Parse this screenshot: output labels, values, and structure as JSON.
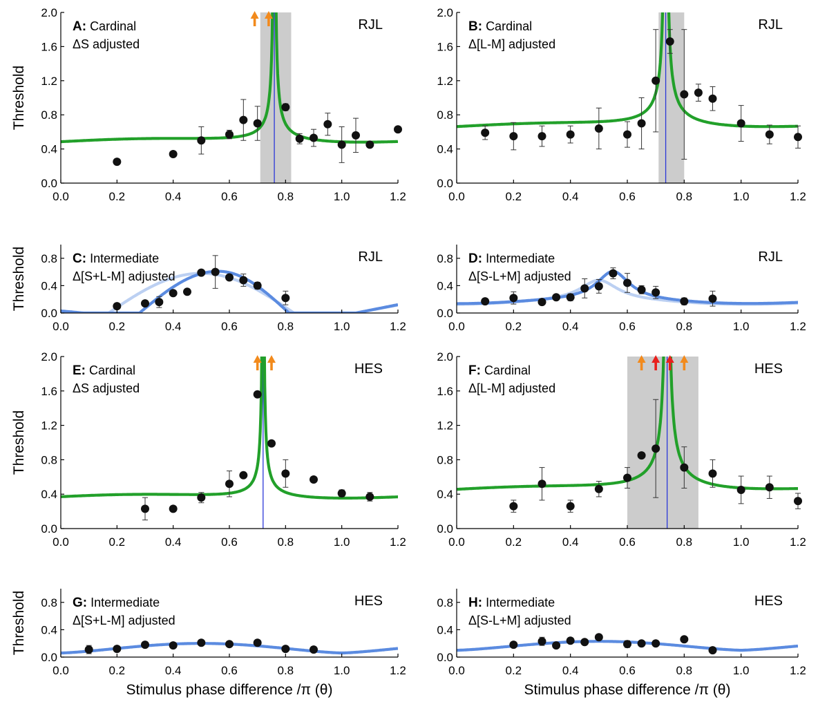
{
  "chart_data": [
    {
      "panel": "A",
      "type": "scatter",
      "title_letter": "A:",
      "title_label": "Cardinal",
      "subtitle": "ΔS adjusted",
      "subject": "RJL",
      "ylabel": "Threshold",
      "xlabel": "",
      "ylim": [
        0,
        2.0
      ],
      "xlim": [
        0,
        1.2
      ],
      "yticks": [
        "0.0",
        "0.4",
        "0.8",
        "1.2",
        "1.6",
        "2.0"
      ],
      "xticks": [
        "0.0",
        "0.2",
        "0.4",
        "0.6",
        "0.8",
        "1.0",
        "1.2"
      ],
      "shade": [
        0.71,
        0.82
      ],
      "vline": 0.76,
      "arrows": [
        {
          "x": 0.69,
          "color": "#f28a1c"
        },
        {
          "x": 0.74,
          "color": "#f28a1c"
        }
      ],
      "curve": {
        "kind": "cardinal",
        "peak": 0.76,
        "base": 0.47,
        "amp": 0.01,
        "ph": 0.3,
        "color": "#22a02a"
      },
      "points": [
        {
          "x": 0.2,
          "y": 0.25,
          "err": 0.02
        },
        {
          "x": 0.4,
          "y": 0.34,
          "err": 0.03
        },
        {
          "x": 0.5,
          "y": 0.5,
          "err": 0.16
        },
        {
          "x": 0.6,
          "y": 0.57,
          "err": 0.05
        },
        {
          "x": 0.65,
          "y": 0.74,
          "err": 0.24
        },
        {
          "x": 0.7,
          "y": 0.7,
          "err": 0.2
        },
        {
          "x": 0.8,
          "y": 0.89,
          "err": 0.04
        },
        {
          "x": 0.85,
          "y": 0.52,
          "err": 0.06
        },
        {
          "x": 0.9,
          "y": 0.53,
          "err": 0.1
        },
        {
          "x": 0.95,
          "y": 0.69,
          "err": 0.13
        },
        {
          "x": 1.0,
          "y": 0.45,
          "err": 0.21
        },
        {
          "x": 1.05,
          "y": 0.56,
          "err": 0.2
        },
        {
          "x": 1.1,
          "y": 0.45,
          "err": 0.02
        },
        {
          "x": 1.2,
          "y": 0.63,
          "err": 0.02
        }
      ]
    },
    {
      "panel": "B",
      "type": "scatter",
      "title_letter": "B:",
      "title_label": "Cardinal",
      "subtitle": "Δ[L-M] adjusted",
      "subject": "RJL",
      "ylabel": "",
      "xlabel": "",
      "ylim": [
        0,
        2.0
      ],
      "xlim": [
        0,
        1.2
      ],
      "yticks": [
        "0.0",
        "0.4",
        "0.8",
        "1.2",
        "1.6",
        "2.0"
      ],
      "xticks": [
        "0.0",
        "0.2",
        "0.4",
        "0.6",
        "0.8",
        "1.0",
        "1.2"
      ],
      "shade": [
        0.71,
        0.8
      ],
      "vline": 0.735,
      "arrows": [],
      "curve": {
        "kind": "cardinal",
        "peak": 0.735,
        "base": 0.64,
        "amp": 0.015,
        "ph": 0.3,
        "color": "#22a02a"
      },
      "points": [
        {
          "x": 0.1,
          "y": 0.59,
          "err": 0.08
        },
        {
          "x": 0.2,
          "y": 0.55,
          "err": 0.16
        },
        {
          "x": 0.3,
          "y": 0.55,
          "err": 0.12
        },
        {
          "x": 0.4,
          "y": 0.57,
          "err": 0.1
        },
        {
          "x": 0.5,
          "y": 0.64,
          "err": 0.24
        },
        {
          "x": 0.6,
          "y": 0.57,
          "err": 0.15
        },
        {
          "x": 0.65,
          "y": 0.7,
          "err": 0.3
        },
        {
          "x": 0.7,
          "y": 1.2,
          "err": 0.6
        },
        {
          "x": 0.75,
          "y": 1.66,
          "err": 0.14
        },
        {
          "x": 0.8,
          "y": 1.04,
          "err": 0.76
        },
        {
          "x": 0.85,
          "y": 1.06,
          "err": 0.1
        },
        {
          "x": 0.9,
          "y": 0.99,
          "err": 0.14
        },
        {
          "x": 1.0,
          "y": 0.7,
          "err": 0.21
        },
        {
          "x": 1.1,
          "y": 0.57,
          "err": 0.11
        },
        {
          "x": 1.2,
          "y": 0.54,
          "err": 0.13
        }
      ]
    },
    {
      "panel": "C",
      "type": "scatter",
      "title_letter": "C:",
      "title_label": "Intermediate",
      "subtitle": "Δ[S+L-M] adjusted",
      "subject": "RJL",
      "ylabel": "Threshold",
      "xlabel": "",
      "ylim": [
        0,
        1.0
      ],
      "xlim": [
        0,
        1.2
      ],
      "yticks": [
        "0.0",
        "0.4",
        "0.8"
      ],
      "xticks": [
        "0.0",
        "0.2",
        "0.4",
        "0.6",
        "0.8",
        "1.0",
        "1.2"
      ],
      "curves": [
        {
          "kind": "intermediate",
          "mid": 0.5,
          "width": 0.33,
          "max": 0.58,
          "min": 0.0,
          "color": "#bcd0f2"
        },
        {
          "kind": "intermediate",
          "mid": 0.56,
          "width": 0.28,
          "max": 0.61,
          "min": 0.0,
          "skew": 0.9,
          "color": "#5b8be0"
        }
      ],
      "points": [
        {
          "x": 0.2,
          "y": 0.1,
          "err": 0.03
        },
        {
          "x": 0.3,
          "y": 0.14,
          "err": 0.03
        },
        {
          "x": 0.35,
          "y": 0.16,
          "err": 0.08
        },
        {
          "x": 0.4,
          "y": 0.29,
          "err": 0.03
        },
        {
          "x": 0.45,
          "y": 0.31,
          "err": 0.03
        },
        {
          "x": 0.5,
          "y": 0.59,
          "err": 0.03
        },
        {
          "x": 0.55,
          "y": 0.6,
          "err": 0.24
        },
        {
          "x": 0.6,
          "y": 0.52,
          "err": 0.03
        },
        {
          "x": 0.65,
          "y": 0.48,
          "err": 0.09
        },
        {
          "x": 0.7,
          "y": 0.4,
          "err": 0.05
        },
        {
          "x": 0.8,
          "y": 0.22,
          "err": 0.1
        }
      ]
    },
    {
      "panel": "D",
      "type": "scatter",
      "title_letter": "D:",
      "title_label": "Intermediate",
      "subtitle": "Δ[S-L+M] adjusted",
      "subject": "RJL",
      "ylabel": "",
      "xlabel": "",
      "ylim": [
        0,
        1.0
      ],
      "xlim": [
        0,
        1.2
      ],
      "yticks": [
        "0.0",
        "0.4",
        "0.8"
      ],
      "xticks": [
        "0.0",
        "0.2",
        "0.4",
        "0.6",
        "0.8",
        "1.0",
        "1.2"
      ],
      "curves": [
        {
          "kind": "bump",
          "peak": 0.5,
          "width": 0.08,
          "base": 0.15,
          "top": 0.45,
          "color": "#bcd0f2"
        },
        {
          "kind": "bump",
          "peak": 0.55,
          "width": 0.07,
          "base": 0.16,
          "top": 0.58,
          "color": "#5b8be0"
        }
      ],
      "points": [
        {
          "x": 0.1,
          "y": 0.17,
          "err": 0.03
        },
        {
          "x": 0.2,
          "y": 0.22,
          "err": 0.09
        },
        {
          "x": 0.3,
          "y": 0.16,
          "err": 0.03
        },
        {
          "x": 0.35,
          "y": 0.23,
          "err": 0.03
        },
        {
          "x": 0.4,
          "y": 0.23,
          "err": 0.05
        },
        {
          "x": 0.45,
          "y": 0.36,
          "err": 0.14
        },
        {
          "x": 0.5,
          "y": 0.39,
          "err": 0.1
        },
        {
          "x": 0.55,
          "y": 0.58,
          "err": 0.08
        },
        {
          "x": 0.6,
          "y": 0.44,
          "err": 0.14
        },
        {
          "x": 0.65,
          "y": 0.34,
          "err": 0.06
        },
        {
          "x": 0.7,
          "y": 0.3,
          "err": 0.09
        },
        {
          "x": 0.8,
          "y": 0.17,
          "err": 0.05
        },
        {
          "x": 0.9,
          "y": 0.21,
          "err": 0.11
        }
      ]
    },
    {
      "panel": "E",
      "type": "scatter",
      "title_letter": "E:",
      "title_label": "Cardinal",
      "subtitle": "ΔS adjusted",
      "subject": "HES",
      "ylabel": "Threshold",
      "xlabel": "",
      "ylim": [
        0,
        2.0
      ],
      "xlim": [
        0,
        1.2
      ],
      "yticks": [
        "0.0",
        "0.4",
        "0.8",
        "1.2",
        "1.6",
        "2.0"
      ],
      "xticks": [
        "0.0",
        "0.2",
        "0.4",
        "0.6",
        "0.8",
        "1.0",
        "1.2"
      ],
      "shade": null,
      "vline": 0.72,
      "arrows": [
        {
          "x": 0.7,
          "color": "#f28a1c"
        },
        {
          "x": 0.75,
          "color": "#f28a1c"
        }
      ],
      "curve": {
        "kind": "cardinal",
        "peak": 0.72,
        "base": 0.35,
        "amp": 0.008,
        "ph": 0.25,
        "color": "#22a02a"
      },
      "points": [
        {
          "x": 0.3,
          "y": 0.23,
          "err": 0.13
        },
        {
          "x": 0.4,
          "y": 0.23,
          "err": 0.03
        },
        {
          "x": 0.5,
          "y": 0.36,
          "err": 0.06
        },
        {
          "x": 0.6,
          "y": 0.52,
          "err": 0.15
        },
        {
          "x": 0.65,
          "y": 0.62,
          "err": 0.03
        },
        {
          "x": 0.7,
          "y": 1.56,
          "err": 0.03
        },
        {
          "x": 0.75,
          "y": 0.99,
          "err": 0.03
        },
        {
          "x": 0.8,
          "y": 0.64,
          "err": 0.16
        },
        {
          "x": 0.9,
          "y": 0.57,
          "err": 0.03
        },
        {
          "x": 1.0,
          "y": 0.41,
          "err": 0.04
        },
        {
          "x": 1.1,
          "y": 0.37,
          "err": 0.05
        }
      ]
    },
    {
      "panel": "F",
      "type": "scatter",
      "title_letter": "F:",
      "title_label": "Cardinal",
      "subtitle": "Δ[L-M] adjusted",
      "subject": "HES",
      "ylabel": "",
      "xlabel": "",
      "ylim": [
        0,
        2.0
      ],
      "xlim": [
        0,
        1.2
      ],
      "yticks": [
        "0.0",
        "0.4",
        "0.8",
        "1.2",
        "1.6",
        "2.0"
      ],
      "xticks": [
        "0.0",
        "0.2",
        "0.4",
        "0.6",
        "0.8",
        "1.0",
        "1.2"
      ],
      "shade": [
        0.6,
        0.85
      ],
      "vline": 0.74,
      "arrows": [
        {
          "x": 0.65,
          "color": "#f28a1c"
        },
        {
          "x": 0.7,
          "color": "#e8201c"
        },
        {
          "x": 0.75,
          "color": "#e8201c"
        },
        {
          "x": 0.8,
          "color": "#f28a1c"
        }
      ],
      "curve": {
        "kind": "cardinal",
        "peak": 0.74,
        "base": 0.42,
        "amp": 0.02,
        "ph": 0.25,
        "color": "#22a02a"
      },
      "points": [
        {
          "x": 0.2,
          "y": 0.26,
          "err": 0.07
        },
        {
          "x": 0.3,
          "y": 0.52,
          "err": 0.19
        },
        {
          "x": 0.4,
          "y": 0.26,
          "err": 0.07
        },
        {
          "x": 0.5,
          "y": 0.46,
          "err": 0.09
        },
        {
          "x": 0.6,
          "y": 0.59,
          "err": 0.12
        },
        {
          "x": 0.65,
          "y": 0.85,
          "err": 0.03
        },
        {
          "x": 0.7,
          "y": 0.93,
          "err": 0.57
        },
        {
          "x": 0.8,
          "y": 0.71,
          "err": 0.24
        },
        {
          "x": 0.9,
          "y": 0.64,
          "err": 0.16
        },
        {
          "x": 1.0,
          "y": 0.45,
          "err": 0.16
        },
        {
          "x": 1.1,
          "y": 0.48,
          "err": 0.13
        },
        {
          "x": 1.2,
          "y": 0.32,
          "err": 0.09
        }
      ]
    },
    {
      "panel": "G",
      "type": "scatter",
      "title_letter": "G:",
      "title_label": "Intermediate",
      "subtitle": "Δ[S+L-M] adjusted",
      "subject": "HES",
      "ylabel": "Threshold",
      "xlabel": "Stimulus phase difference /π (θ)",
      "ylim": [
        0,
        1.0
      ],
      "xlim": [
        0,
        1.2
      ],
      "yticks": [
        "0.0",
        "0.4",
        "0.8"
      ],
      "xticks": [
        "0.0",
        "0.2",
        "0.4",
        "0.6",
        "0.8",
        "1.0",
        "1.2"
      ],
      "curves": [
        {
          "kind": "hump",
          "mid": 0.48,
          "period": 1.0,
          "max": 0.2,
          "min": 0.06,
          "zero": 1.0,
          "color": "#5b8be0"
        }
      ],
      "points": [
        {
          "x": 0.1,
          "y": 0.11,
          "err": 0.06
        },
        {
          "x": 0.2,
          "y": 0.12,
          "err": 0.04
        },
        {
          "x": 0.3,
          "y": 0.18,
          "err": 0.03
        },
        {
          "x": 0.4,
          "y": 0.17,
          "err": 0.03
        },
        {
          "x": 0.5,
          "y": 0.21,
          "err": 0.03
        },
        {
          "x": 0.6,
          "y": 0.19,
          "err": 0.03
        },
        {
          "x": 0.7,
          "y": 0.21,
          "err": 0.03
        },
        {
          "x": 0.8,
          "y": 0.12,
          "err": 0.02
        },
        {
          "x": 0.9,
          "y": 0.11,
          "err": 0.02
        }
      ]
    },
    {
      "panel": "H",
      "type": "scatter",
      "title_letter": "H:",
      "title_label": "Intermediate",
      "subtitle": "Δ[S-L+M] adjusted",
      "subject": "HES",
      "ylabel": "",
      "xlabel": "Stimulus phase difference /π (θ)",
      "ylim": [
        0,
        1.0
      ],
      "xlim": [
        0,
        1.2
      ],
      "yticks": [
        "0.0",
        "0.4",
        "0.8"
      ],
      "xticks": [
        "0.0",
        "0.2",
        "0.4",
        "0.6",
        "0.8",
        "1.0",
        "1.2"
      ],
      "curves": [
        {
          "kind": "hump",
          "mid": 0.5,
          "period": 1.0,
          "max": 0.23,
          "min": 0.1,
          "zero": 1.0,
          "color": "#5b8be0"
        }
      ],
      "points": [
        {
          "x": 0.2,
          "y": 0.18,
          "err": 0.03
        },
        {
          "x": 0.3,
          "y": 0.23,
          "err": 0.06
        },
        {
          "x": 0.35,
          "y": 0.17,
          "err": 0.03
        },
        {
          "x": 0.4,
          "y": 0.24,
          "err": 0.03
        },
        {
          "x": 0.45,
          "y": 0.22,
          "err": 0.03
        },
        {
          "x": 0.5,
          "y": 0.29,
          "err": 0.03
        },
        {
          "x": 0.6,
          "y": 0.19,
          "err": 0.05
        },
        {
          "x": 0.65,
          "y": 0.2,
          "err": 0.03
        },
        {
          "x": 0.7,
          "y": 0.2,
          "err": 0.03
        },
        {
          "x": 0.8,
          "y": 0.26,
          "err": 0.03
        },
        {
          "x": 0.9,
          "y": 0.1,
          "err": 0.03
        }
      ]
    }
  ]
}
